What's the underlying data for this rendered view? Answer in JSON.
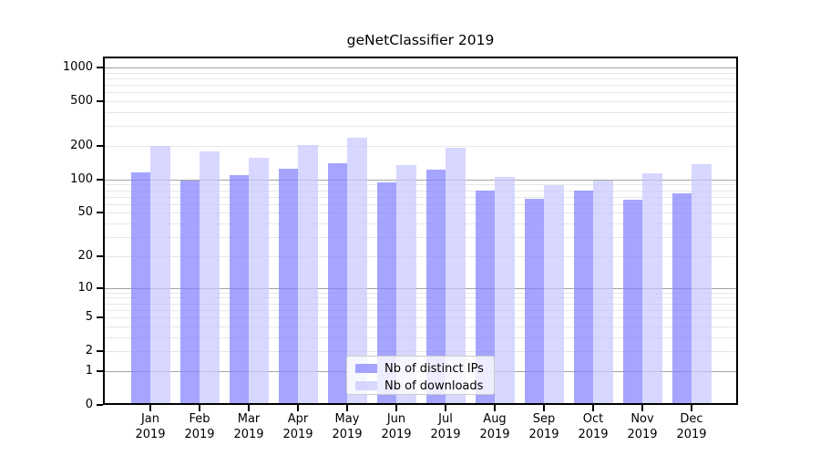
{
  "chart_data": {
    "type": "bar",
    "title": "geNetClassifier 2019",
    "categories": [
      "Jan 2019",
      "Feb 2019",
      "Mar 2019",
      "Apr 2019",
      "May 2019",
      "Jun 2019",
      "Jul 2019",
      "Aug 2019",
      "Sep 2019",
      "Oct 2019",
      "Nov 2019",
      "Dec 2019"
    ],
    "series": [
      {
        "name": "Nb of distinct IPs",
        "color": "#8282ff",
        "values": [
          115,
          97,
          109,
          125,
          140,
          94,
          122,
          79,
          67,
          79,
          66,
          75
        ]
      },
      {
        "name": "Nb of downloads",
        "color": "#c8c8ff",
        "values": [
          199,
          178,
          157,
          205,
          235,
          134,
          192,
          105,
          89,
          98,
          114,
          137
        ]
      }
    ],
    "bar_opacity": 0.72,
    "yscale": "log1p",
    "ylim": [
      0,
      1250
    ],
    "xlabel": "",
    "ylabel": "",
    "y_ticks": [
      0,
      1,
      2,
      5,
      10,
      20,
      50,
      100,
      200,
      500,
      1000
    ],
    "major_grid": [
      1,
      10,
      100,
      1000
    ],
    "minor_grid": [
      2,
      3,
      4,
      5,
      6,
      7,
      8,
      9,
      20,
      30,
      40,
      50,
      60,
      70,
      80,
      90,
      200,
      300,
      400,
      500,
      600,
      700,
      800,
      900
    ],
    "grid_major_color": "#a3a3a3",
    "grid_minor_color": "#e7e7e7",
    "legend_position": "lower center"
  }
}
